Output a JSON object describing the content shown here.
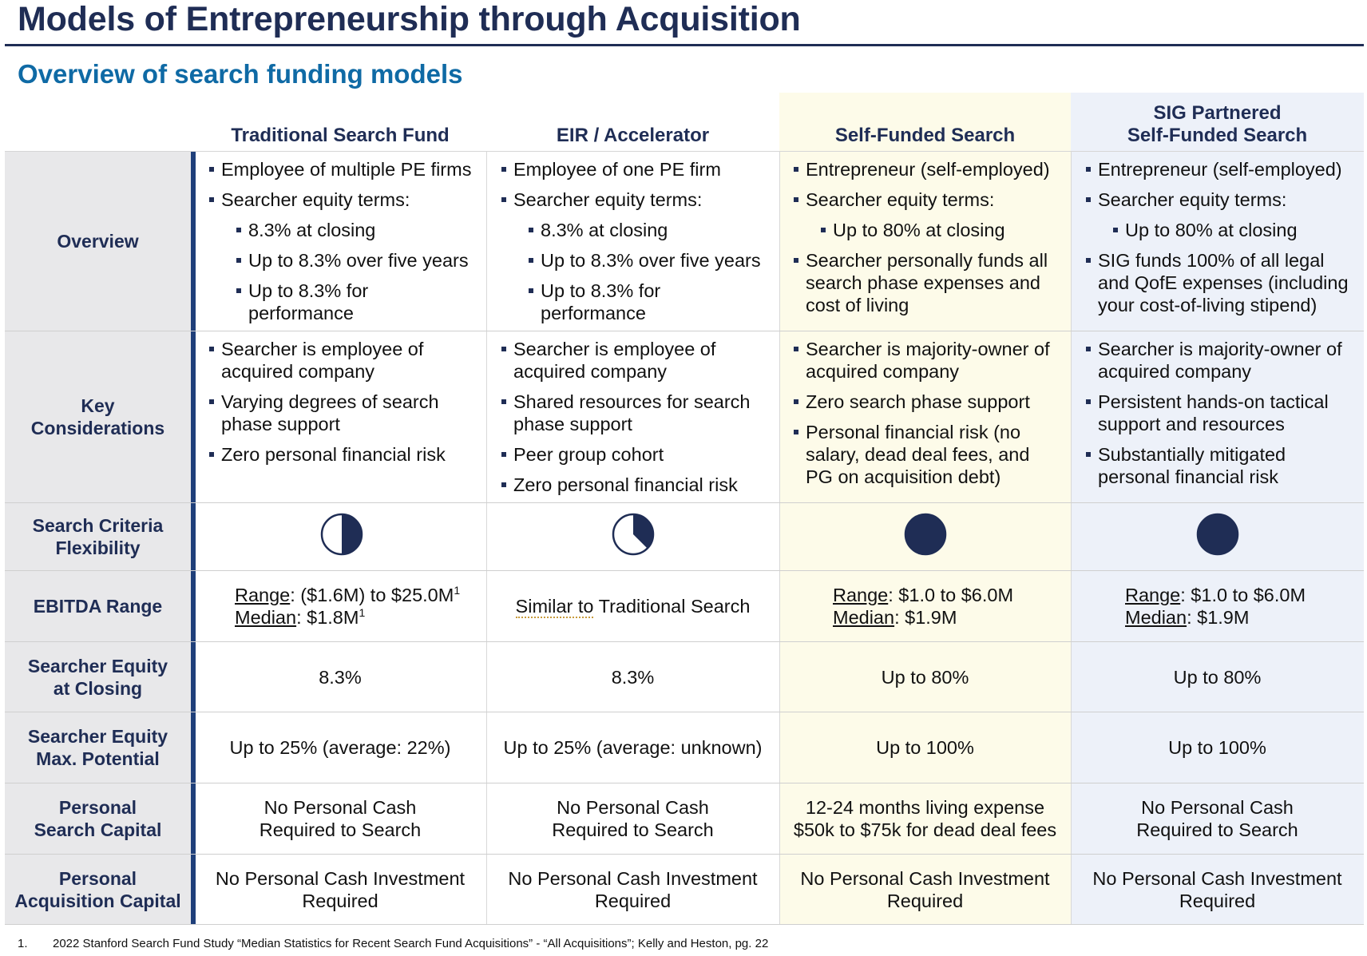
{
  "title": "Models of Entrepreneurship through Acquisition",
  "subtitle": "Overview of search funding models",
  "colors": {
    "navy": "#1f2d55",
    "accent_blue": "#0f6aa5",
    "self_funded_bg": "#fdfbe9",
    "sig_bg": "#edf1f9",
    "label_bg": "#e8e8ea"
  },
  "columns": [
    "Traditional Search Fund",
    "EIR / Accelerator",
    "Self-Funded Search",
    "SIG Partnered\nSelf-Funded Search"
  ],
  "rows": {
    "overview": {
      "label": "Overview",
      "cells": [
        {
          "bullets": [
            "Employee of multiple PE firms",
            "Searcher equity terms:"
          ],
          "sub": [
            "8.3% at closing",
            "Up to 8.3% over five years",
            "Up to 8.3% for performance"
          ]
        },
        {
          "bullets": [
            "Employee of one PE firm",
            "Searcher equity terms:"
          ],
          "sub": [
            "8.3% at closing",
            "Up to 8.3% over five years",
            "Up to 8.3% for performance"
          ]
        },
        {
          "bullets": [
            "Entrepreneur (self-employed)",
            "Searcher equity terms:"
          ],
          "sub": [
            "Up to 80% at closing"
          ],
          "after": [
            "Searcher personally funds all search phase expenses and cost of living"
          ]
        },
        {
          "bullets": [
            "Entrepreneur (self-employed)",
            "Searcher equity terms:"
          ],
          "sub": [
            "Up to 80% at closing"
          ],
          "after": [
            "SIG funds 100% of all legal and QofE expenses (including your cost-of-living stipend)"
          ]
        }
      ]
    },
    "key": {
      "label": "Key\nConsiderations",
      "cells": [
        [
          "Searcher is employee of acquired company",
          "Varying degrees of search phase support",
          "Zero personal financial risk"
        ],
        [
          "Searcher is employee of acquired company",
          "Shared resources for search phase support",
          "Peer group cohort",
          "Zero personal financial risk"
        ],
        [
          "Searcher is majority-owner of acquired company",
          "Zero search phase support",
          "Personal financial risk (no salary, dead deal fees, and PG on acquisition debt)"
        ],
        [
          "Searcher is majority-owner of acquired company",
          "Persistent hands-on tactical support and resources",
          "Substantially mitigated personal financial risk"
        ]
      ]
    },
    "flex": {
      "label": "Search Criteria\nFlexibility",
      "levels": [
        0.5,
        0.375,
        1.0,
        1.0
      ]
    },
    "ebitda": {
      "label": "EBITDA Range",
      "range_label": "Range",
      "median_label": "Median",
      "c1_range": ": ($1.6M) to $25.0M",
      "c1_median": ": $1.8M",
      "footnote_mark": "1",
      "c2_underlined": "Similar to",
      "c2_rest": " Traditional Search",
      "c3_range": ": $1.0 to $6.0M",
      "c3_median": ": $1.9M",
      "c4_range": ": $1.0 to $6.0M",
      "c4_median": ": $1.9M"
    },
    "closing": {
      "label": "Searcher Equity\nat Closing",
      "cells": [
        "8.3%",
        "8.3%",
        "Up to 80%",
        "Up to 80%"
      ]
    },
    "maxpot": {
      "label": "Searcher Equity\nMax. Potential",
      "cells": [
        "Up to 25% (average: 22%)",
        "Up to 25% (average: unknown)",
        "Up to 100%",
        "Up to 100%"
      ]
    },
    "search_capital": {
      "label": "Personal\nSearch Capital",
      "cells": [
        "No Personal Cash\nRequired to Search",
        "No Personal Cash\nRequired to Search",
        "12-24 months living expense\n$50k to $75k for dead deal fees",
        "No Personal Cash\nRequired to Search"
      ]
    },
    "acq_capital": {
      "label": "Personal\nAcquisition Capital",
      "cells": [
        "No Personal Cash Investment\nRequired",
        "No Personal Cash Investment\nRequired",
        "No Personal Cash Investment\nRequired",
        "No Personal Cash Investment\nRequired"
      ]
    }
  },
  "footnote": {
    "number": "1.",
    "text": "2022 Stanford Search Fund Study “Median Statistics for Recent Search Fund Acquisitions” - “All Acquisitions”; Kelly and Heston, pg. 22"
  }
}
